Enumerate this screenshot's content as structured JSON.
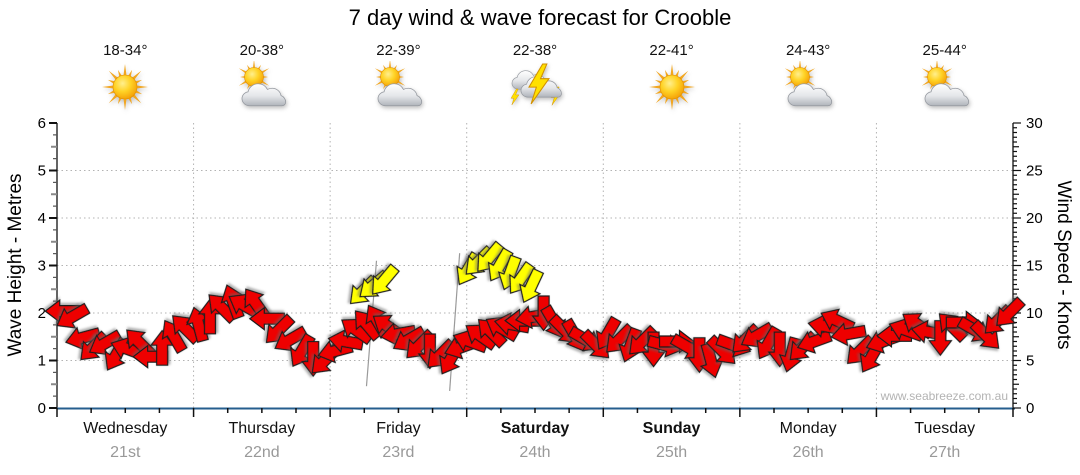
{
  "title": "7 day wind & wave forecast for Crooble",
  "watermark": "www.seabreeze.com.au",
  "forecast": {
    "days": [
      {
        "name": "Wednesday",
        "date": "21st",
        "temp": "18-34°",
        "icon": "sunny",
        "bold": false
      },
      {
        "name": "Thursday",
        "date": "22nd",
        "temp": "20-38°",
        "icon": "partly-cloudy",
        "bold": false
      },
      {
        "name": "Friday",
        "date": "23rd",
        "temp": "22-39°",
        "icon": "partly-cloudy",
        "bold": false
      },
      {
        "name": "Saturday",
        "date": "24th",
        "temp": "22-38°",
        "icon": "storm",
        "bold": true
      },
      {
        "name": "Sunday",
        "date": "25th",
        "temp": "22-41°",
        "icon": "sunny",
        "bold": true
      },
      {
        "name": "Monday",
        "date": "26th",
        "temp": "24-43°",
        "icon": "partly-cloudy",
        "bold": false
      },
      {
        "name": "Tuesday",
        "date": "27th",
        "temp": "25-44°",
        "icon": "partly-cloudy",
        "bold": false
      }
    ]
  },
  "chart_data": {
    "type": "scatter",
    "title": "7 day wind & wave forecast for Crooble",
    "grid": true,
    "legend": false,
    "left_axis": {
      "label": "Wave Height - Metres",
      "min": 0,
      "max": 6,
      "ticks": [
        0,
        1,
        2,
        3,
        4,
        5,
        6
      ]
    },
    "right_axis": {
      "label": "Wind Speed - Knots",
      "min": 0,
      "max": 30,
      "ticks": [
        0,
        5,
        10,
        15,
        20,
        25,
        30
      ]
    },
    "colors": {
      "wind_arrow": "#ee0000",
      "gust_arrow": "#ffff00",
      "arrow_outline": "#1a1a1a",
      "grid": "#b3b3b3",
      "baseline": "#255e8e",
      "axis": "#111111",
      "day_text": "#111111",
      "date_text": "#999999",
      "watermark_text": "#b3b3b3"
    },
    "wind_arrows": {
      "format": [
        "t_fraction_of_week",
        "speed_knots",
        "direction_deg_cw_from_east",
        "color_key"
      ],
      "points": [
        [
          0.006,
          10.2,
          180,
          "r"
        ],
        [
          0.016,
          9.6,
          150,
          "r"
        ],
        [
          0.027,
          7.4,
          165,
          "r"
        ],
        [
          0.038,
          6.4,
          135,
          "r"
        ],
        [
          0.05,
          6.8,
          150,
          "r"
        ],
        [
          0.062,
          5.6,
          120,
          "r"
        ],
        [
          0.074,
          6.2,
          200,
          "r"
        ],
        [
          0.086,
          6.9,
          225,
          "r"
        ],
        [
          0.098,
          5.4,
          180,
          "r"
        ],
        [
          0.11,
          6.3,
          270,
          "r"
        ],
        [
          0.122,
          7.6,
          240,
          "r"
        ],
        [
          0.134,
          8.4,
          225,
          "r"
        ],
        [
          0.148,
          8.8,
          255,
          "r"
        ],
        [
          0.16,
          9.6,
          270,
          "r"
        ],
        [
          0.172,
          10.6,
          225,
          "r"
        ],
        [
          0.184,
          11.2,
          250,
          "r"
        ],
        [
          0.196,
          10.8,
          210,
          "r"
        ],
        [
          0.208,
          11.0,
          235,
          "r"
        ],
        [
          0.22,
          9.4,
          180,
          "r"
        ],
        [
          0.232,
          8.2,
          135,
          "r"
        ],
        [
          0.244,
          7.2,
          150,
          "r"
        ],
        [
          0.256,
          6.0,
          120,
          "r"
        ],
        [
          0.268,
          5.2,
          90,
          "r"
        ],
        [
          0.28,
          5.0,
          135,
          "r"
        ],
        [
          0.291,
          6.0,
          165,
          "r"
        ],
        [
          0.302,
          7.0,
          190,
          "r"
        ],
        [
          0.313,
          8.2,
          215,
          "r"
        ],
        [
          0.32,
          12.3,
          135,
          "y"
        ],
        [
          0.324,
          8.8,
          230,
          "r"
        ],
        [
          0.331,
          12.9,
          140,
          "y"
        ],
        [
          0.335,
          9.2,
          240,
          "r"
        ],
        [
          0.342,
          13.4,
          130,
          "y"
        ],
        [
          0.346,
          8.6,
          215,
          "r"
        ],
        [
          0.357,
          7.8,
          170,
          "r"
        ],
        [
          0.368,
          7.2,
          150,
          "r"
        ],
        [
          0.379,
          6.6,
          135,
          "r"
        ],
        [
          0.39,
          6.0,
          90,
          "r"
        ],
        [
          0.401,
          5.6,
          135,
          "r"
        ],
        [
          0.412,
          5.2,
          120,
          "r"
        ],
        [
          0.423,
          6.4,
          160,
          "r"
        ],
        [
          0.43,
          14.6,
          120,
          "y"
        ],
        [
          0.432,
          7.0,
          200,
          "r"
        ],
        [
          0.441,
          15.4,
          135,
          "y"
        ],
        [
          0.443,
          7.6,
          215,
          "r"
        ],
        [
          0.452,
          15.8,
          130,
          "y"
        ],
        [
          0.454,
          8.0,
          225,
          "r"
        ],
        [
          0.463,
          15.0,
          120,
          "y"
        ],
        [
          0.465,
          8.4,
          210,
          "r"
        ],
        [
          0.474,
          14.2,
          110,
          "y"
        ],
        [
          0.476,
          8.8,
          190,
          "r"
        ],
        [
          0.485,
          13.6,
          125,
          "y"
        ],
        [
          0.487,
          9.2,
          180,
          "r"
        ],
        [
          0.496,
          12.8,
          115,
          "y"
        ],
        [
          0.498,
          9.6,
          170,
          "r"
        ],
        [
          0.509,
          10.0,
          90,
          "r"
        ],
        [
          0.52,
          9.0,
          60,
          "r"
        ],
        [
          0.531,
          8.2,
          45,
          "r"
        ],
        [
          0.542,
          7.6,
          60,
          "r"
        ],
        [
          0.553,
          7.2,
          30,
          "r"
        ],
        [
          0.564,
          6.6,
          45,
          "r"
        ],
        [
          0.576,
          7.8,
          120,
          "r"
        ],
        [
          0.588,
          7.2,
          135,
          "r"
        ],
        [
          0.6,
          6.6,
          110,
          "r"
        ],
        [
          0.612,
          7.0,
          135,
          "r"
        ],
        [
          0.624,
          6.2,
          90,
          "r"
        ],
        [
          0.636,
          6.6,
          15,
          "r"
        ],
        [
          0.648,
          7.0,
          0,
          "r"
        ],
        [
          0.66,
          6.4,
          30,
          "r"
        ],
        [
          0.672,
          5.6,
          90,
          "r"
        ],
        [
          0.684,
          5.0,
          75,
          "r"
        ],
        [
          0.696,
          6.0,
          45,
          "r"
        ],
        [
          0.708,
          6.6,
          20,
          "r"
        ],
        [
          0.72,
          7.2,
          135,
          "r"
        ],
        [
          0.732,
          7.6,
          150,
          "r"
        ],
        [
          0.744,
          6.8,
          120,
          "r"
        ],
        [
          0.756,
          6.2,
          90,
          "r"
        ],
        [
          0.768,
          5.6,
          105,
          "r"
        ],
        [
          0.78,
          6.4,
          135,
          "r"
        ],
        [
          0.792,
          7.0,
          160,
          "r"
        ],
        [
          0.804,
          8.6,
          190,
          "r"
        ],
        [
          0.816,
          9.2,
          205,
          "r"
        ],
        [
          0.828,
          7.8,
          170,
          "r"
        ],
        [
          0.84,
          6.0,
          135,
          "r"
        ],
        [
          0.852,
          5.4,
          120,
          "r"
        ],
        [
          0.864,
          7.0,
          160,
          "r"
        ],
        [
          0.876,
          7.6,
          180,
          "r"
        ],
        [
          0.888,
          8.2,
          200,
          "r"
        ],
        [
          0.9,
          8.8,
          215,
          "r"
        ],
        [
          0.912,
          8.0,
          190,
          "r"
        ],
        [
          0.924,
          7.4,
          90,
          "r"
        ],
        [
          0.936,
          8.6,
          225,
          "r"
        ],
        [
          0.948,
          9.0,
          0,
          "r"
        ],
        [
          0.96,
          8.2,
          30,
          "r"
        ],
        [
          0.972,
          7.6,
          45,
          "r"
        ],
        [
          0.984,
          9.2,
          135,
          "r"
        ],
        [
          0.996,
          10.0,
          135,
          "r"
        ]
      ]
    },
    "gust_stems": [
      {
        "t": 0.33,
        "top_knots": 15.5,
        "bottom_knots": 2.3
      },
      {
        "t": 0.417,
        "top_knots": 16.3,
        "bottom_knots": 1.8
      }
    ]
  }
}
